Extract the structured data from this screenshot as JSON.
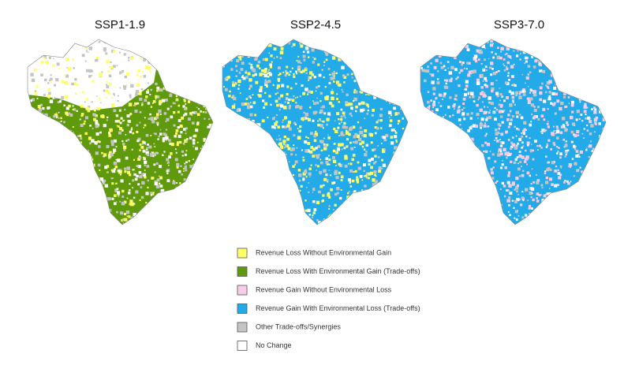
{
  "maps": [
    {
      "title": "SSP1-1.9"
    },
    {
      "title": "SSP2-4.5"
    },
    {
      "title": "SSP3-7.0"
    }
  ],
  "legend": [
    {
      "label": "Revenue Loss Without Environmental Gain",
      "color": "#ffff66"
    },
    {
      "label": "Revenue Loss With Environmental Gain (Trade-offs)",
      "color": "#5f9a0c"
    },
    {
      "label": "Revenue Gain Without Environmental Loss",
      "color": "#f6cce8"
    },
    {
      "label": "Revenue Gain With Environmental Loss (Trade-offs)",
      "color": "#22abe8"
    },
    {
      "label": "Other Trade-offs/Synergies",
      "color": "#c4c4c4"
    },
    {
      "label": "No Change",
      "color": "#ffffff"
    }
  ]
}
